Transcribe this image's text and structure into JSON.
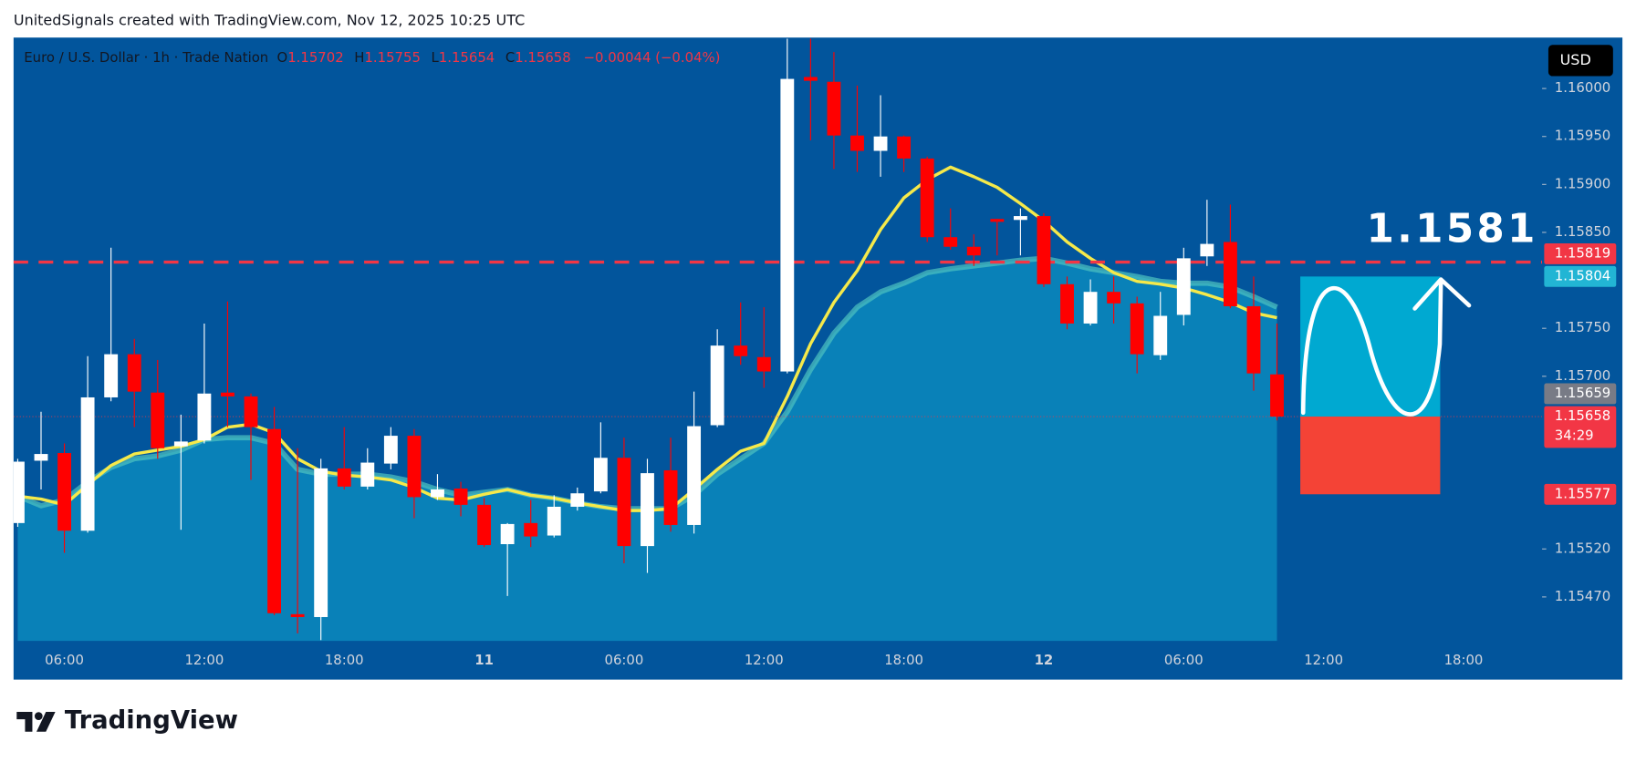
{
  "chart_data": {
    "type": "candlestick",
    "title": "UnitedSignals created with TradingView.com, Nov 12, 2025 10:25 UTC",
    "legend": {
      "symbol": "Euro / U.S. Dollar · 1h · Trade Nation",
      "open_label": "O",
      "open": 1.15702,
      "high_label": "H",
      "high": 1.15755,
      "low_label": "L",
      "low": 1.15654,
      "close_label": "C",
      "close": 1.15658,
      "change": "−0.00044 (−0.04%)"
    },
    "currency": "USD",
    "brand": "TradingView",
    "annotation": "1.1581",
    "categories": [
      null,
      null,
      "06:00",
      null,
      null,
      null,
      null,
      null,
      "12:00",
      null,
      null,
      null,
      null,
      null,
      "18:00",
      null,
      null,
      null,
      null,
      null,
      "11",
      null,
      null,
      null,
      null,
      null,
      "06:00",
      null,
      null,
      null,
      null,
      null,
      "12:00",
      null,
      null,
      null,
      null,
      null,
      "18:00",
      null,
      null,
      null,
      null,
      null,
      "12",
      null,
      null,
      null,
      null,
      null,
      "06:00",
      null,
      null,
      null,
      null,
      null,
      "12:00",
      null,
      null,
      null,
      null,
      null,
      "18:00",
      null,
      null,
      null
    ],
    "open": [
      1.15547,
      1.15612,
      1.1562,
      1.15539,
      1.15678,
      1.15723,
      1.15683,
      1.15627,
      1.15633,
      1.15683,
      1.15679,
      1.15645,
      1.15452,
      1.15449,
      1.15604,
      1.15585,
      1.15609,
      1.15638,
      1.15574,
      1.15583,
      1.15566,
      1.15525,
      1.15547,
      1.15534,
      1.15564,
      1.1558,
      1.15615,
      1.15523,
      1.15602,
      1.15545,
      1.15649,
      1.15732,
      1.1572,
      1.15705,
      1.16012,
      1.16007,
      1.15951,
      1.15935,
      1.1595,
      1.15927,
      1.15845,
      1.15835,
      1.15864,
      1.15863,
      1.15867,
      1.15796,
      1.15755,
      1.15788,
      1.15776,
      1.15722,
      1.15764,
      1.15825,
      1.1584,
      1.15773,
      1.15702,
      null,
      null,
      null,
      null,
      null,
      null,
      null,
      null,
      null,
      null,
      null
    ],
    "high": [
      1.15614,
      1.15663,
      1.1563,
      1.15721,
      1.15834,
      1.15739,
      1.15717,
      1.1566,
      1.15755,
      1.15778,
      1.15682,
      1.15668,
      1.15625,
      1.15614,
      1.15647,
      1.15625,
      1.15647,
      1.15645,
      1.15598,
      1.1559,
      1.15573,
      1.15547,
      1.15571,
      1.15576,
      1.15584,
      1.15652,
      1.15636,
      1.15614,
      1.15636,
      1.15684,
      1.15749,
      1.15777,
      1.15772,
      1.16052,
      1.16052,
      1.16038,
      1.16003,
      1.15993,
      1.15951,
      1.15929,
      1.15875,
      1.15848,
      1.15864,
      1.15875,
      1.1587,
      1.15804,
      1.15801,
      1.15804,
      1.15783,
      1.15788,
      1.15834,
      1.15884,
      1.15879,
      1.15804,
      1.15755,
      null,
      null,
      null,
      null,
      null,
      null,
      null,
      null,
      null,
      null,
      null
    ],
    "low": [
      1.15543,
      1.15582,
      1.15516,
      1.15537,
      1.15674,
      1.15647,
      1.15614,
      1.1554,
      1.1563,
      1.15647,
      1.15592,
      1.15451,
      1.15432,
      1.15425,
      1.15582,
      1.15582,
      1.15603,
      1.15552,
      1.15571,
      1.15554,
      1.15522,
      1.15471,
      1.15522,
      1.15532,
      1.1556,
      1.15578,
      1.15505,
      1.15495,
      1.15538,
      1.15536,
      1.15647,
      1.15712,
      1.15688,
      1.15703,
      1.15946,
      1.15916,
      1.15913,
      1.15908,
      1.15913,
      1.1584,
      1.15832,
      1.15815,
      1.15826,
      1.15826,
      1.15793,
      1.15749,
      1.15753,
      1.15755,
      1.15703,
      1.15717,
      1.15753,
      1.15815,
      1.15771,
      1.15685,
      1.15654,
      null,
      null,
      null,
      null,
      null,
      null,
      null,
      null,
      null,
      null,
      null
    ],
    "close": [
      1.15611,
      1.15619,
      1.15539,
      1.15678,
      1.15723,
      1.15684,
      1.15625,
      1.15632,
      1.15682,
      1.15679,
      1.15647,
      1.15453,
      1.15449,
      1.15604,
      1.15585,
      1.1561,
      1.15638,
      1.15574,
      1.15582,
      1.15566,
      1.15524,
      1.15546,
      1.15533,
      1.15564,
      1.15578,
      1.15615,
      1.15523,
      1.15599,
      1.15545,
      1.15648,
      1.15732,
      1.15721,
      1.15705,
      1.1601,
      1.16008,
      1.15951,
      1.15935,
      1.1595,
      1.15927,
      1.15845,
      1.15835,
      1.15826,
      1.15861,
      1.15867,
      1.15796,
      1.15755,
      1.15788,
      1.15776,
      1.15723,
      1.15763,
      1.15823,
      1.15838,
      1.15773,
      1.15703,
      1.15658,
      null,
      null,
      null,
      null,
      null,
      null,
      null,
      null,
      null,
      null,
      null
    ],
    "up_color": "#ffffff",
    "down_color": "#ff0000",
    "moving_averages": [
      {
        "color": "#4fc3c0",
        "fill": "#0a86bb",
        "values": [
          1.15575,
          1.15565,
          1.15571,
          1.1559,
          1.15605,
          1.15614,
          1.15617,
          1.15623,
          1.15634,
          1.15636,
          1.15636,
          1.1563,
          1.15603,
          1.15598,
          1.15598,
          1.15598,
          1.15595,
          1.1559,
          1.15582,
          1.15576,
          1.15579,
          1.15582,
          1.15576,
          1.15573,
          1.15568,
          1.15564,
          1.15562,
          1.15562,
          1.15562,
          1.15576,
          1.15598,
          1.15614,
          1.1563,
          1.15663,
          1.15707,
          1.15745,
          1.15772,
          1.15788,
          1.15797,
          1.15808,
          1.15812,
          1.15815,
          1.15818,
          1.15821,
          1.15823,
          1.15818,
          1.15812,
          1.15808,
          1.15804,
          1.15799,
          1.15797,
          1.15797,
          1.15793,
          1.15783,
          1.15772,
          null,
          null,
          null,
          null,
          null,
          null,
          null,
          null,
          null,
          null,
          null
        ]
      },
      {
        "color": "#f5e94a",
        "values": [
          1.15575,
          1.15572,
          1.15566,
          1.15587,
          1.15607,
          1.15619,
          1.15623,
          1.15627,
          1.15634,
          1.15647,
          1.1565,
          1.15641,
          1.15614,
          1.15601,
          1.15597,
          1.15595,
          1.15592,
          1.15584,
          1.15573,
          1.15571,
          1.15577,
          1.15582,
          1.15576,
          1.15573,
          1.15568,
          1.15564,
          1.1556,
          1.1556,
          1.15562,
          1.15582,
          1.15603,
          1.15622,
          1.1563,
          1.15679,
          1.15734,
          1.15777,
          1.1581,
          1.15853,
          1.15886,
          1.15905,
          1.15918,
          1.15908,
          1.15897,
          1.1588,
          1.15862,
          1.1584,
          1.15823,
          1.15808,
          1.15799,
          1.15796,
          1.15792,
          1.15785,
          1.15777,
          1.15766,
          1.15761,
          null,
          null,
          null,
          null,
          null,
          null,
          null,
          null,
          null,
          null,
          null
        ]
      }
    ],
    "level": {
      "value": 1.15819,
      "color": "#f23645"
    },
    "position": {
      "entry": 1.15658,
      "target": 1.15804,
      "stop": 1.15577,
      "target_color": "#00a9d1",
      "stop_color": "#f44336"
    },
    "price_labels": [
      {
        "value": 1.15819,
        "color": "#f23645"
      },
      {
        "value": 1.15804,
        "color": "#22b5d4"
      },
      {
        "value": 1.15659,
        "color": "#787b86"
      },
      {
        "value": 1.15658,
        "color": "#f23645",
        "countdown": "34:29"
      },
      {
        "value": 1.15577,
        "color": "#f23645"
      }
    ],
    "ylim": [
      1.15424,
      1.16052
    ],
    "yticks": [
      {
        "value": 1.16,
        "label": "1.16000"
      },
      {
        "value": 1.1595,
        "label": "1.15950"
      },
      {
        "value": 1.159,
        "label": "1.15900"
      },
      {
        "value": 1.1585,
        "label": "1.15850"
      },
      {
        "value": 1.1575,
        "label": "1.15750"
      },
      {
        "value": 1.157,
        "label": "1.15700"
      },
      {
        "value": 1.1552,
        "label": "1.15520"
      },
      {
        "value": 1.1547,
        "label": "1.15470"
      }
    ]
  }
}
